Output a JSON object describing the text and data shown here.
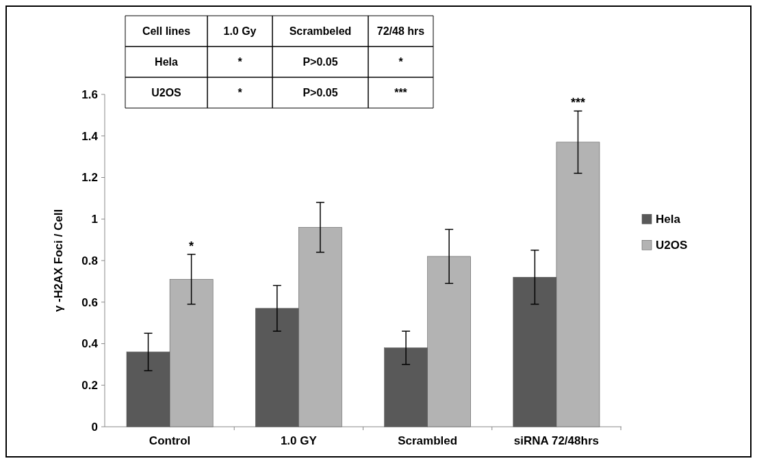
{
  "chart_data": {
    "type": "bar",
    "ylabel": "γ -H2AX Foci / Cell",
    "categories": [
      "Control",
      "1.0 GY",
      "Scrambled",
      "siRNA 72/48hrs"
    ],
    "series": [
      {
        "name": "Hela",
        "color": "#595959",
        "values": [
          0.36,
          0.57,
          0.38,
          0.72
        ],
        "errors": [
          0.09,
          0.11,
          0.08,
          0.13
        ]
      },
      {
        "name": "U2OS",
        "color": "#b3b3b3",
        "values": [
          0.71,
          0.96,
          0.82,
          1.37
        ],
        "errors": [
          0.12,
          0.12,
          0.13,
          0.15
        ],
        "value_labels": [
          "*",
          null,
          null,
          "***"
        ]
      }
    ],
    "ylim": [
      0,
      1.6
    ],
    "yticks": [
      0,
      0.2,
      0.4,
      0.6,
      0.8,
      1,
      1.2,
      1.4,
      1.6
    ],
    "grid": false,
    "legend": "right",
    "annotations": [
      "Cell lines",
      "1.0 Gy",
      "Scrambeled",
      "72/48 hrs",
      "Hela",
      "*",
      "P>0.05",
      "*",
      "U2OS",
      "*",
      "P>0.05",
      "***"
    ]
  }
}
